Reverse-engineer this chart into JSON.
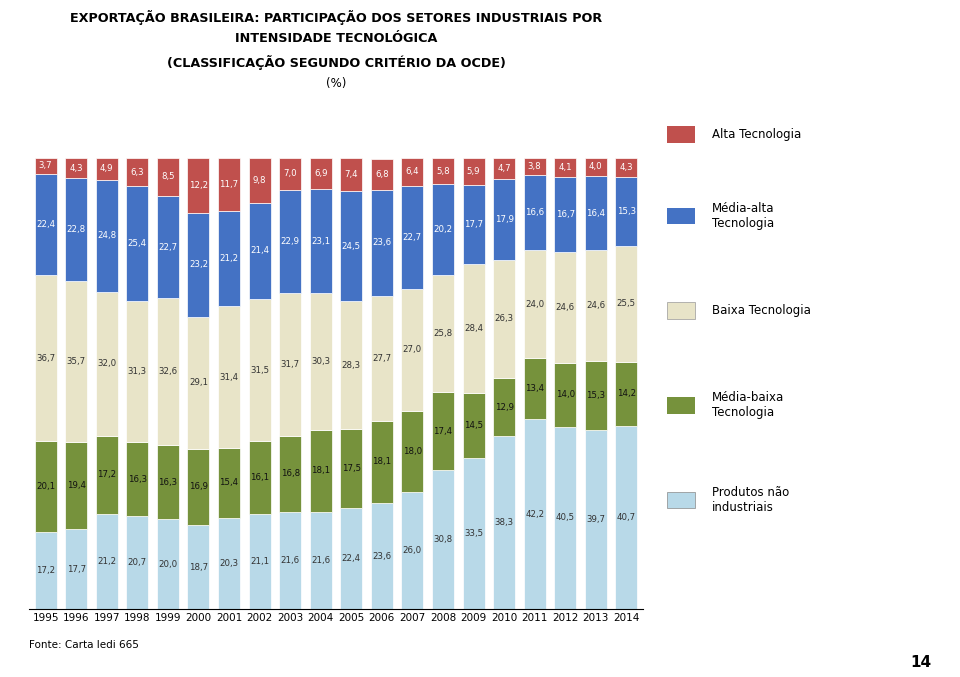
{
  "title_line1": "EXPORTAÇÃO BRASILEIRA: PARTICIPAÇÃO DOS SETORES INDUSTRIAIS POR",
  "title_line2": "INTENSIDADE TECNOLÓGICA",
  "title_line3": "(CLASSIFICAÇÃO SEGUNDO CRITÉRIO DA OCDE)",
  "subtitle": "(%)",
  "years": [
    1995,
    1996,
    1997,
    1998,
    1999,
    2000,
    2001,
    2002,
    2003,
    2004,
    2005,
    2006,
    2007,
    2008,
    2009,
    2010,
    2011,
    2012,
    2013,
    2014
  ],
  "alta": [
    3.7,
    4.3,
    4.9,
    6.3,
    8.5,
    12.2,
    11.7,
    9.8,
    7.0,
    6.9,
    7.4,
    6.8,
    6.4,
    5.8,
    5.9,
    4.7,
    3.8,
    4.1,
    4.0,
    4.3
  ],
  "media_alta": [
    22.4,
    22.8,
    24.8,
    25.4,
    22.7,
    23.2,
    21.2,
    21.4,
    22.9,
    23.1,
    24.5,
    23.6,
    22.7,
    20.2,
    17.7,
    17.9,
    16.6,
    16.7,
    16.4,
    15.3
  ],
  "baixa": [
    36.7,
    35.7,
    32.0,
    31.3,
    32.6,
    29.1,
    31.4,
    31.5,
    31.7,
    30.3,
    28.3,
    27.7,
    27.0,
    25.8,
    28.4,
    26.3,
    24.0,
    24.6,
    24.6,
    25.5
  ],
  "media_baixa": [
    20.1,
    19.4,
    17.2,
    16.3,
    16.3,
    16.9,
    15.4,
    16.1,
    16.8,
    18.1,
    17.5,
    18.1,
    18.0,
    17.4,
    14.5,
    12.9,
    13.4,
    14.0,
    15.3,
    14.2
  ],
  "nao_industriais": [
    17.2,
    17.7,
    21.2,
    20.7,
    20.0,
    18.7,
    20.3,
    21.1,
    21.6,
    21.6,
    22.4,
    23.6,
    26.0,
    30.8,
    33.5,
    38.3,
    42.2,
    40.5,
    39.7,
    40.7
  ],
  "color_alta": "#C0504D",
  "color_media_alta": "#4472C4",
  "color_baixa": "#E8E4C8",
  "color_media_baixa": "#76923C",
  "color_nao_industriais": "#B8D9E8",
  "footnote": "Fonte: Carta Iedi 665",
  "page_number": "14"
}
